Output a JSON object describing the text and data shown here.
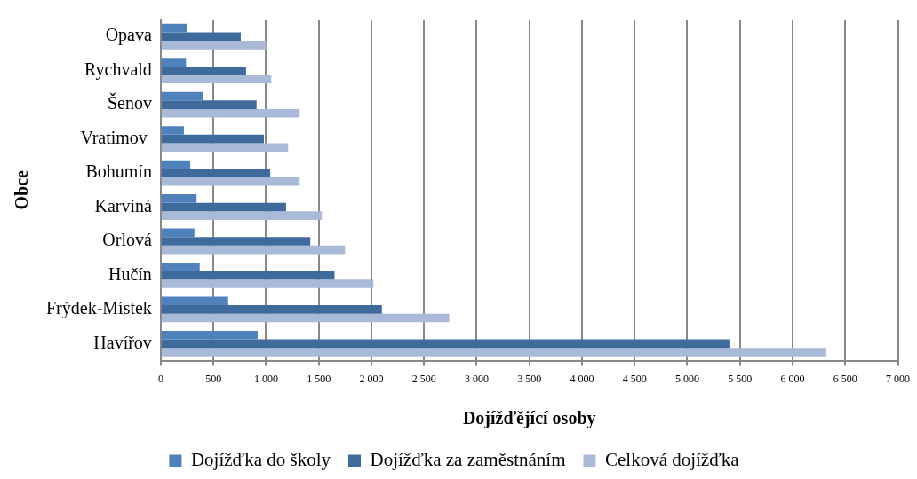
{
  "chart_data": {
    "type": "bar",
    "orientation": "horizontal",
    "categories": [
      "Opava",
      "Rychvald",
      "Šenov",
      "Vratimov ",
      "Bohumín",
      "Karviná",
      "Orlová",
      "Hučín",
      "Frýdek-Místek",
      "Havířov"
    ],
    "series": [
      {
        "name": "Dojížďka do školy",
        "color": "#4f81bd",
        "values": [
          250,
          240,
          400,
          220,
          280,
          340,
          320,
          370,
          640,
          920
        ]
      },
      {
        "name": "Dojížďka za zaměstnáním",
        "color": "#3f6a9c",
        "values": [
          760,
          810,
          910,
          980,
          1040,
          1190,
          1420,
          1650,
          2100,
          5400
        ]
      },
      {
        "name": "Celková dojížďka",
        "color": "#a9b9d8",
        "values": [
          1000,
          1050,
          1320,
          1210,
          1320,
          1530,
          1750,
          2020,
          2740,
          6320
        ]
      }
    ],
    "xlabel": "Dojížďějící osoby",
    "ylabel": "Obce",
    "xlim": [
      0,
      7000
    ],
    "xticks": [
      0,
      500,
      {
        "value": 1000,
        "label": "1 000"
      },
      {
        "value": 1500,
        "label": "1 500"
      },
      {
        "value": 2000,
        "label": "2 000"
      },
      {
        "value": 2500,
        "label": "2 500"
      },
      {
        "value": 3000,
        "label": "3 000"
      },
      {
        "value": 3500,
        "label": "3 500"
      },
      {
        "value": 4000,
        "label": "4 000"
      },
      {
        "value": 4500,
        "label": "4 500"
      },
      {
        "value": 5000,
        "label": "5 000"
      },
      {
        "value": 5500,
        "label": "5 500"
      },
      {
        "value": 6000,
        "label": "6 000"
      },
      {
        "value": 6500,
        "label": "6 500"
      },
      {
        "value": 7000,
        "label": "7 000"
      }
    ],
    "grid": "x",
    "legend": "bottom"
  }
}
